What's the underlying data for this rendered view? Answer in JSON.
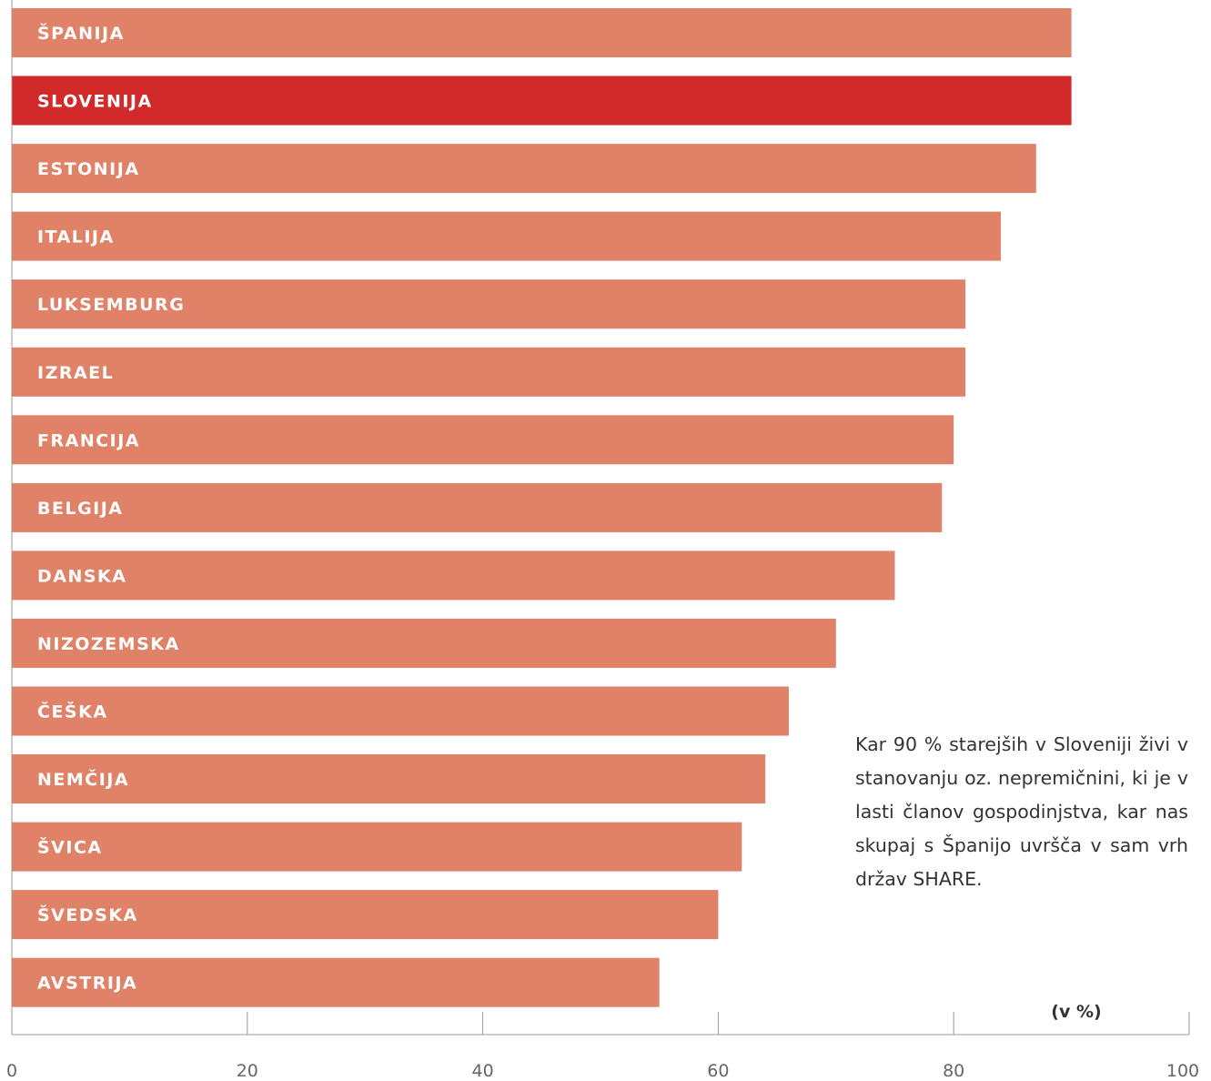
{
  "chart_data": {
    "type": "bar",
    "orientation": "horizontal",
    "categories": [
      "ŠPANIJA",
      "SLOVENIJA",
      "ESTONIJA",
      "ITALIJA",
      "LUKSEMBURG",
      "IZRAEL",
      "FRANCIJA",
      "BELGIJA",
      "DANSKA",
      "NIZOZEMSKA",
      "ČEŠKA",
      "NEMČIJA",
      "ŠVICA",
      "ŠVEDSKA",
      "AVSTRIJA"
    ],
    "values": [
      90,
      90,
      87,
      84,
      81,
      81,
      80,
      79,
      75,
      70,
      66,
      64,
      62,
      60,
      55
    ],
    "highlight": "SLOVENIJA",
    "xlim": [
      0,
      100
    ],
    "xticks": [
      0,
      20,
      40,
      60,
      80,
      100
    ],
    "xlabel": "(v %)",
    "title": "",
    "colors": {
      "bar": "#e08267",
      "highlight": "#d22a2a",
      "axis": "#999999"
    },
    "annotation": "Kar 90 % starejših v Sloveniji živi v stanovanju oz. nepremičnini, ki je v lasti članov gospodinjstva, kar nas skupaj s Španijo uvršča v sam vrh držav SHARE."
  }
}
